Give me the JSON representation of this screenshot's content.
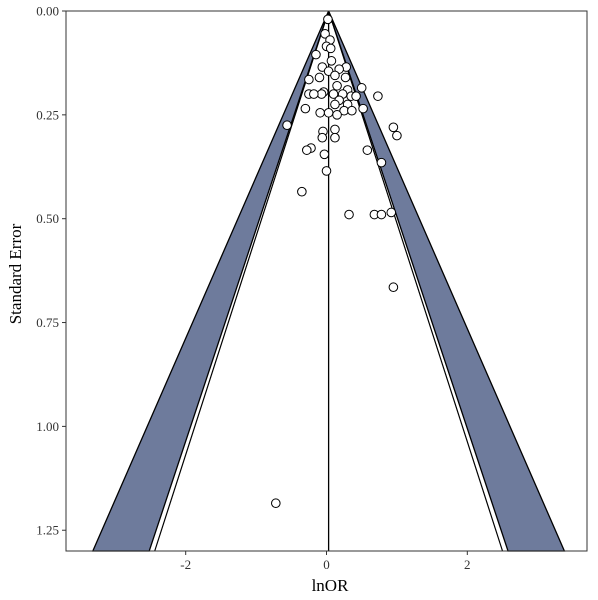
{
  "chart_data": {
    "type": "scatter",
    "subtype": "funnel-plot",
    "title": "",
    "xlabel": "lnOR",
    "ylabel": "Standard Error",
    "xlim": [
      -3.7,
      3.7
    ],
    "ylim": [
      0,
      1.3
    ],
    "y_reversed": true,
    "x_ticks": [
      -2,
      0,
      2
    ],
    "x_tick_labels": [
      "-2",
      "0",
      "2"
    ],
    "y_ticks": [
      0,
      0.25,
      0.5,
      0.75,
      1.0,
      1.25
    ],
    "y_tick_labels": [
      "0.00",
      "0.25",
      "0.50",
      "0.75",
      "1.00",
      "1.25"
    ],
    "grid": false,
    "legend": "none",
    "center_estimate": 0.03,
    "funnel_z_outer": 2.576,
    "funnel_z_inner": 1.96,
    "band_color": "#6e7b9c",
    "points": [
      {
        "x": 0.02,
        "y": 0.02
      },
      {
        "x": -0.02,
        "y": 0.055
      },
      {
        "x": 0.05,
        "y": 0.07
      },
      {
        "x": 0.0,
        "y": 0.085
      },
      {
        "x": 0.06,
        "y": 0.09
      },
      {
        "x": -0.15,
        "y": 0.105
      },
      {
        "x": 0.07,
        "y": 0.12
      },
      {
        "x": -0.06,
        "y": 0.135
      },
      {
        "x": 0.28,
        "y": 0.135
      },
      {
        "x": 0.03,
        "y": 0.145
      },
      {
        "x": 0.18,
        "y": 0.14
      },
      {
        "x": 0.27,
        "y": 0.16
      },
      {
        "x": 0.12,
        "y": 0.155
      },
      {
        "x": -0.1,
        "y": 0.16
      },
      {
        "x": -0.25,
        "y": 0.165
      },
      {
        "x": 0.5,
        "y": 0.185
      },
      {
        "x": 0.15,
        "y": 0.18
      },
      {
        "x": 0.3,
        "y": 0.19
      },
      {
        "x": -0.04,
        "y": 0.195
      },
      {
        "x": -0.07,
        "y": 0.2
      },
      {
        "x": -0.25,
        "y": 0.2
      },
      {
        "x": -0.18,
        "y": 0.2
      },
      {
        "x": 0.1,
        "y": 0.2
      },
      {
        "x": 0.23,
        "y": 0.2
      },
      {
        "x": 0.35,
        "y": 0.205
      },
      {
        "x": 0.42,
        "y": 0.205
      },
      {
        "x": 0.73,
        "y": 0.205
      },
      {
        "x": 0.18,
        "y": 0.215
      },
      {
        "x": 0.12,
        "y": 0.225
      },
      {
        "x": 0.3,
        "y": 0.225
      },
      {
        "x": -0.3,
        "y": 0.235
      },
      {
        "x": 0.52,
        "y": 0.235
      },
      {
        "x": 0.25,
        "y": 0.24
      },
      {
        "x": 0.36,
        "y": 0.24
      },
      {
        "x": -0.09,
        "y": 0.245
      },
      {
        "x": 0.03,
        "y": 0.245
      },
      {
        "x": 0.15,
        "y": 0.25
      },
      {
        "x": -0.56,
        "y": 0.275
      },
      {
        "x": 0.95,
        "y": 0.28
      },
      {
        "x": 0.12,
        "y": 0.285
      },
      {
        "x": -0.05,
        "y": 0.29
      },
      {
        "x": 1.0,
        "y": 0.3
      },
      {
        "x": -0.06,
        "y": 0.305
      },
      {
        "x": 0.12,
        "y": 0.305
      },
      {
        "x": -0.22,
        "y": 0.33
      },
      {
        "x": -0.28,
        "y": 0.335
      },
      {
        "x": 0.58,
        "y": 0.335
      },
      {
        "x": -0.03,
        "y": 0.345
      },
      {
        "x": 0.78,
        "y": 0.365
      },
      {
        "x": 0.0,
        "y": 0.385
      },
      {
        "x": -0.35,
        "y": 0.435
      },
      {
        "x": 0.32,
        "y": 0.49
      },
      {
        "x": 0.68,
        "y": 0.49
      },
      {
        "x": 0.78,
        "y": 0.49
      },
      {
        "x": 0.92,
        "y": 0.485
      },
      {
        "x": 0.95,
        "y": 0.665
      },
      {
        "x": -0.72,
        "y": 1.185
      }
    ]
  }
}
